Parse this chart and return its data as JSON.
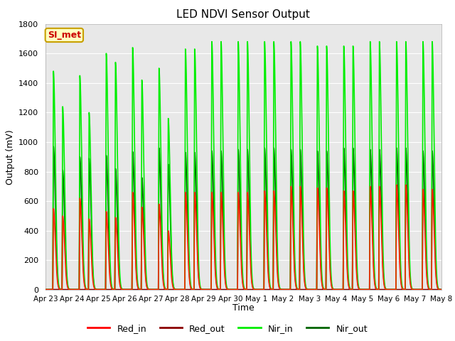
{
  "title": "LED NDVI Sensor Output",
  "xlabel": "Time",
  "ylabel": "Output (mV)",
  "ylim": [
    0,
    1800
  ],
  "background_color": "#ffffff",
  "plot_bg_color": "#e8e8e8",
  "grid_color": "#ffffff",
  "annotation_text": "SI_met",
  "annotation_bg": "#ffffc0",
  "annotation_border": "#c8a000",
  "annotation_text_color": "#cc0000",
  "x_tick_labels": [
    "Apr 23",
    "Apr 24",
    "Apr 25",
    "Apr 26",
    "Apr 27",
    "Apr 28",
    "Apr 29",
    "Apr 30",
    "May 1",
    "May 2",
    "May 3",
    "May 4",
    "May 5",
    "May 6",
    "May 7",
    "May 8"
  ],
  "x_tick_positions": [
    0,
    1,
    2,
    3,
    4,
    5,
    6,
    7,
    8,
    9,
    10,
    11,
    12,
    13,
    14,
    15
  ],
  "legend_labels": [
    "Red_in",
    "Red_out",
    "Nir_in",
    "Nir_out"
  ],
  "legend_colors": [
    "#ff0000",
    "#8b0000",
    "#00ee00",
    "#006400"
  ],
  "series": {
    "Red_in": {
      "color": "#ff2200",
      "linewidth": 1.2
    },
    "Red_out": {
      "color": "#8b0000",
      "linewidth": 1.2
    },
    "Nir_in": {
      "color": "#00ee00",
      "linewidth": 1.2
    },
    "Nir_out": {
      "color": "#006400",
      "linewidth": 1.2
    }
  },
  "cycle_peaks_nir_in": [
    1480,
    1450,
    1600,
    1640,
    1500,
    1630,
    1680,
    1680,
    1680,
    1680,
    1650,
    1650,
    1680,
    1680,
    1680
  ],
  "cycle_peaks_nir_in2": [
    1240,
    1200,
    1540,
    1420,
    1160,
    1630,
    1680,
    1680,
    1680,
    1680,
    1650,
    1650,
    1680,
    1680,
    1680
  ],
  "cycle_peaks_nir_out": [
    970,
    900,
    910,
    935,
    960,
    930,
    940,
    950,
    960,
    950,
    940,
    960,
    950,
    960,
    940
  ],
  "cycle_peaks_nir_out2": [
    810,
    890,
    820,
    760,
    850,
    930,
    940,
    950,
    960,
    950,
    940,
    960,
    950,
    960,
    940
  ],
  "cycle_peaks_red_in": [
    550,
    620,
    530,
    660,
    580,
    660,
    660,
    660,
    670,
    700,
    690,
    670,
    700,
    710,
    680
  ],
  "cycle_peaks_red_in2": [
    500,
    480,
    490,
    560,
    400,
    660,
    660,
    660,
    670,
    700,
    690,
    670,
    700,
    710,
    680
  ],
  "cycle_peaks_red_out": [
    5,
    5,
    5,
    5,
    5,
    5,
    5,
    5,
    5,
    5,
    5,
    5,
    5,
    5,
    5
  ]
}
